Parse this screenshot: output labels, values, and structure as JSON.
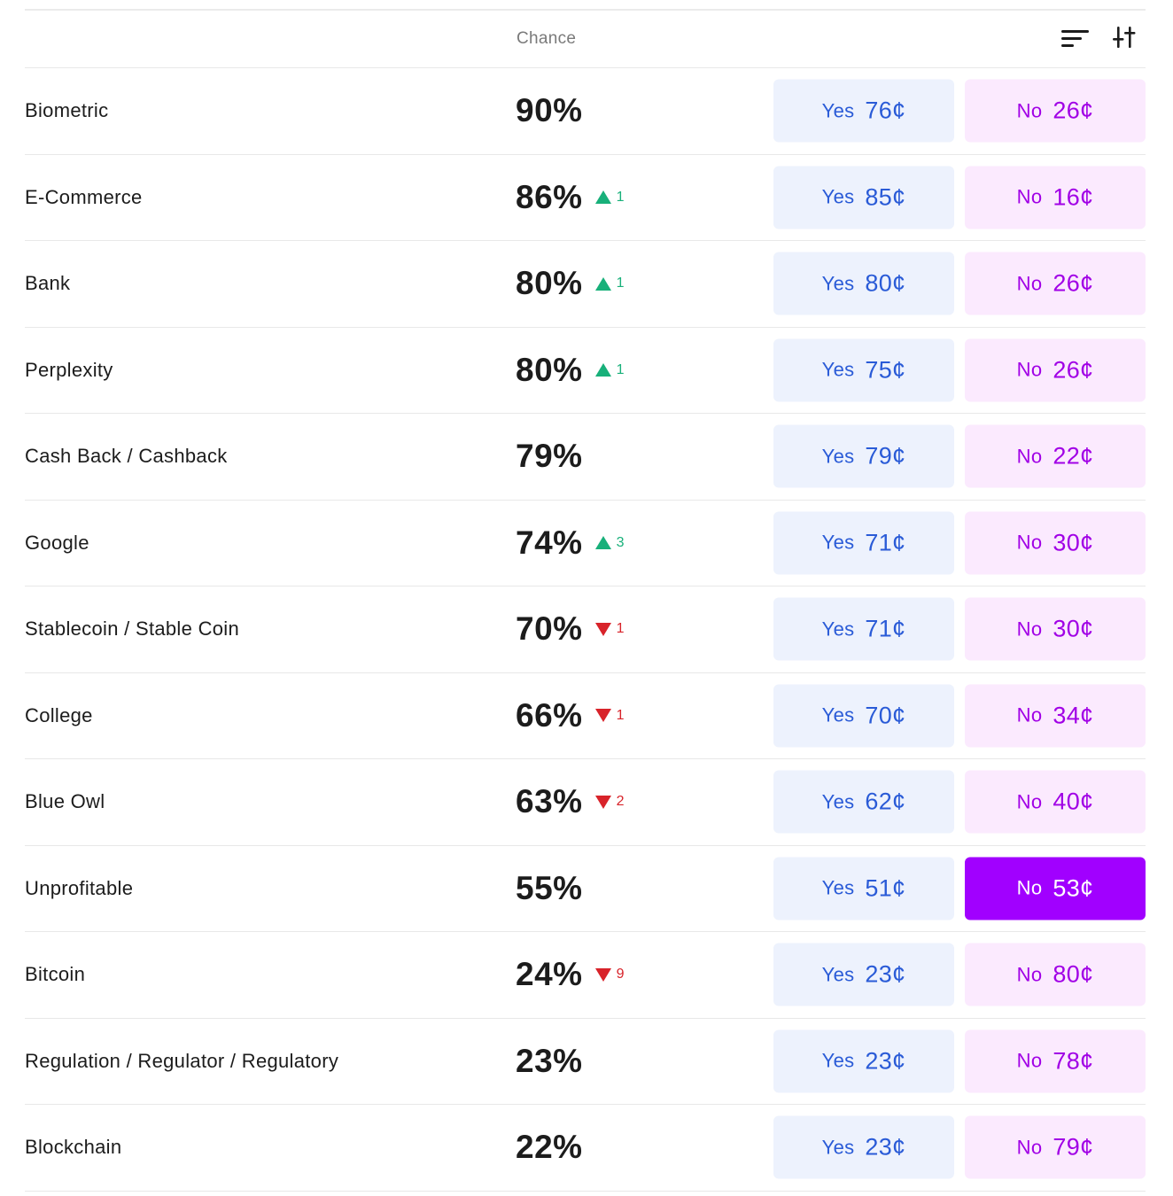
{
  "header": {
    "chance_label": "Chance"
  },
  "colors": {
    "yes_bg": "#edf2fd",
    "yes_text": "#2a5bd7",
    "no_bg": "#fbeafe",
    "no_text": "#a100e6",
    "no_selected_bg": "#a100ff",
    "up": "#18b07a",
    "down": "#d8232a"
  },
  "rows": [
    {
      "label": "Biometric",
      "chance": "90%",
      "delta": "",
      "delta_dir": "",
      "yes_label": "Yes",
      "yes_price": "76¢",
      "no_label": "No",
      "no_price": "26¢",
      "no_selected": false
    },
    {
      "label": "E-Commerce",
      "chance": "86%",
      "delta": "1",
      "delta_dir": "up",
      "yes_label": "Yes",
      "yes_price": "85¢",
      "no_label": "No",
      "no_price": "16¢",
      "no_selected": false
    },
    {
      "label": "Bank",
      "chance": "80%",
      "delta": "1",
      "delta_dir": "up",
      "yes_label": "Yes",
      "yes_price": "80¢",
      "no_label": "No",
      "no_price": "26¢",
      "no_selected": false
    },
    {
      "label": "Perplexity",
      "chance": "80%",
      "delta": "1",
      "delta_dir": "up",
      "yes_label": "Yes",
      "yes_price": "75¢",
      "no_label": "No",
      "no_price": "26¢",
      "no_selected": false
    },
    {
      "label": "Cash Back / Cashback",
      "chance": "79%",
      "delta": "",
      "delta_dir": "",
      "yes_label": "Yes",
      "yes_price": "79¢",
      "no_label": "No",
      "no_price": "22¢",
      "no_selected": false
    },
    {
      "label": "Google",
      "chance": "74%",
      "delta": "3",
      "delta_dir": "up",
      "yes_label": "Yes",
      "yes_price": "71¢",
      "no_label": "No",
      "no_price": "30¢",
      "no_selected": false
    },
    {
      "label": "Stablecoin / Stable Coin",
      "chance": "70%",
      "delta": "1",
      "delta_dir": "down",
      "yes_label": "Yes",
      "yes_price": "71¢",
      "no_label": "No",
      "no_price": "30¢",
      "no_selected": false
    },
    {
      "label": "College",
      "chance": "66%",
      "delta": "1",
      "delta_dir": "down",
      "yes_label": "Yes",
      "yes_price": "70¢",
      "no_label": "No",
      "no_price": "34¢",
      "no_selected": false
    },
    {
      "label": "Blue Owl",
      "chance": "63%",
      "delta": "2",
      "delta_dir": "down",
      "yes_label": "Yes",
      "yes_price": "62¢",
      "no_label": "No",
      "no_price": "40¢",
      "no_selected": false
    },
    {
      "label": "Unprofitable",
      "chance": "55%",
      "delta": "",
      "delta_dir": "",
      "yes_label": "Yes",
      "yes_price": "51¢",
      "no_label": "No",
      "no_price": "53¢",
      "no_selected": true
    },
    {
      "label": "Bitcoin",
      "chance": "24%",
      "delta": "9",
      "delta_dir": "down",
      "yes_label": "Yes",
      "yes_price": "23¢",
      "no_label": "No",
      "no_price": "80¢",
      "no_selected": false
    },
    {
      "label": "Regulation / Regulator / Regulatory",
      "chance": "23%",
      "delta": "",
      "delta_dir": "",
      "yes_label": "Yes",
      "yes_price": "23¢",
      "no_label": "No",
      "no_price": "78¢",
      "no_selected": false
    },
    {
      "label": "Blockchain",
      "chance": "22%",
      "delta": "",
      "delta_dir": "",
      "yes_label": "Yes",
      "yes_price": "23¢",
      "no_label": "No",
      "no_price": "79¢",
      "no_selected": false
    }
  ]
}
